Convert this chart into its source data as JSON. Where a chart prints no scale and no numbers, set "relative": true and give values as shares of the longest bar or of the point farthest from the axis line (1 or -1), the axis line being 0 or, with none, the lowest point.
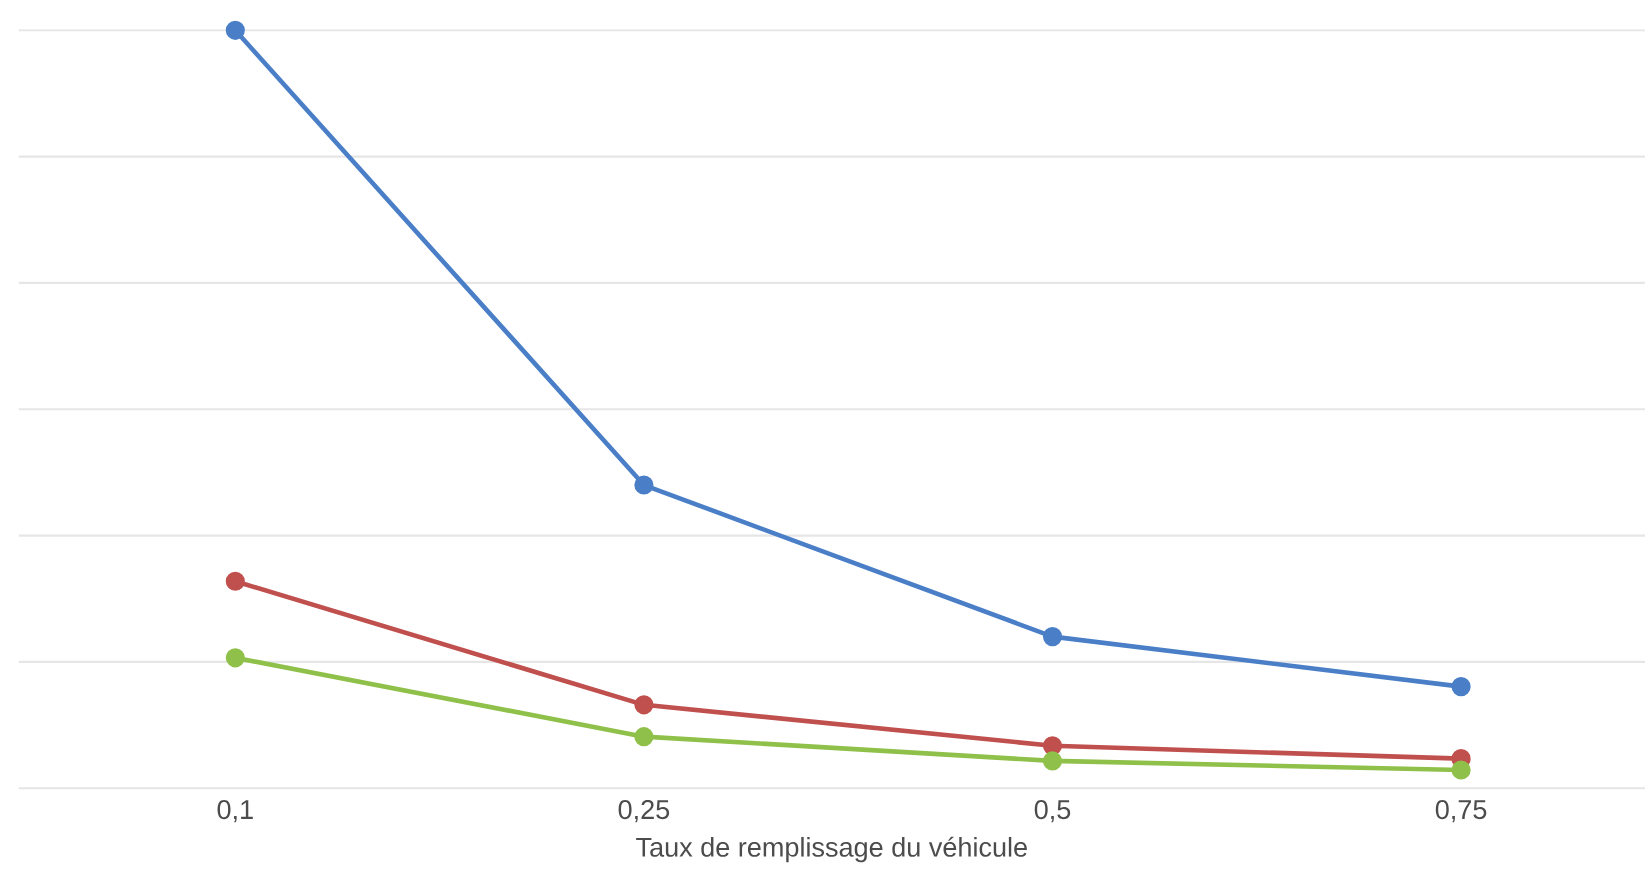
{
  "chart_data": {
    "type": "line",
    "xlabel": "Taux de remplissage du véhicule",
    "categories": [
      "0,1",
      "0,25",
      "0,5",
      "0,75"
    ],
    "relative": true,
    "grid": "y",
    "marker": "circle",
    "line_style": "solid",
    "series": [
      {
        "color": "#4a7fc8",
        "values": [
          1,
          0.4,
          0.2,
          0.134
        ]
      },
      {
        "color": "#c0504d",
        "values": [
          0.273,
          0.11,
          0.056,
          0.039
        ]
      },
      {
        "color": "#8fc04a",
        "values": [
          0.172,
          0.068,
          0.036,
          0.024
        ]
      }
    ]
  }
}
